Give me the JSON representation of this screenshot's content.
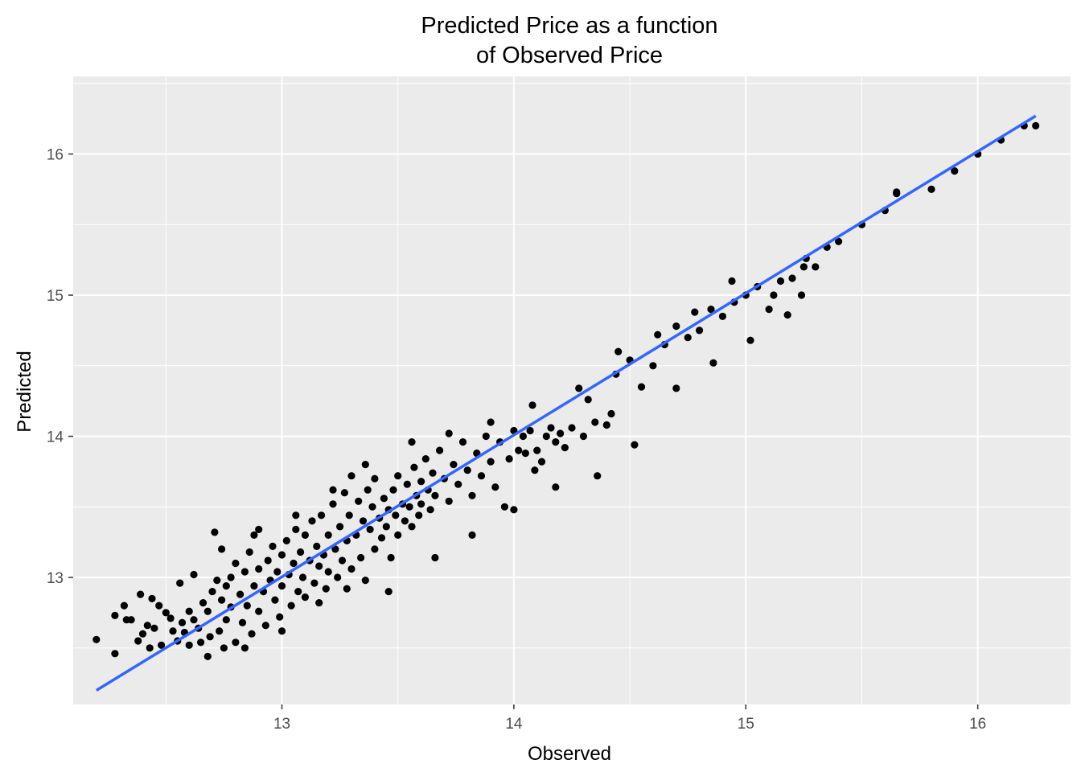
{
  "chart_data": {
    "type": "scatter",
    "title_lines": [
      "Predicted Price as a function",
      "of Observed Price"
    ],
    "xlabel": "Observed",
    "ylabel": "Predicted",
    "xlim": [
      12.1,
      16.4
    ],
    "ylim": [
      12.1,
      16.55
    ],
    "x_ticks": [
      13,
      14,
      15,
      16
    ],
    "y_ticks": [
      13,
      14,
      15,
      16
    ],
    "x_tick_labels": [
      "13",
      "14",
      "15",
      "16"
    ],
    "y_tick_labels": [
      "13",
      "14",
      "15",
      "16"
    ],
    "grid": true,
    "legend": "none",
    "fit_line": {
      "color": "#3366FF",
      "x": [
        12.2,
        16.25
      ],
      "y": [
        12.2,
        16.27
      ]
    },
    "point_color": "#000000",
    "panel_color": "#EBEBEB",
    "points": [
      [
        12.2,
        12.56
      ],
      [
        12.28,
        12.46
      ],
      [
        12.28,
        12.73
      ],
      [
        12.33,
        12.7
      ],
      [
        12.35,
        12.7
      ],
      [
        12.38,
        12.55
      ],
      [
        12.39,
        12.88
      ],
      [
        12.4,
        12.6
      ],
      [
        12.42,
        12.66
      ],
      [
        12.43,
        12.5
      ],
      [
        12.44,
        12.85
      ],
      [
        12.45,
        12.64
      ],
      [
        12.47,
        12.8
      ],
      [
        12.48,
        12.52
      ],
      [
        12.5,
        12.75
      ],
      [
        12.52,
        12.71
      ],
      [
        12.53,
        12.62
      ],
      [
        12.55,
        12.55
      ],
      [
        12.57,
        12.68
      ],
      [
        12.58,
        12.61
      ],
      [
        12.6,
        12.52
      ],
      [
        12.6,
        12.76
      ],
      [
        12.62,
        12.7
      ],
      [
        12.64,
        12.64
      ],
      [
        12.65,
        12.54
      ],
      [
        12.66,
        12.82
      ],
      [
        12.68,
        12.76
      ],
      [
        12.69,
        12.58
      ],
      [
        12.7,
        12.9
      ],
      [
        12.71,
        13.32
      ],
      [
        12.72,
        12.98
      ],
      [
        12.73,
        12.62
      ],
      [
        12.74,
        12.84
      ],
      [
        12.75,
        12.5
      ],
      [
        12.76,
        12.94
      ],
      [
        12.76,
        12.7
      ],
      [
        12.78,
        13.0
      ],
      [
        12.78,
        12.79
      ],
      [
        12.8,
        12.54
      ],
      [
        12.8,
        13.1
      ],
      [
        12.82,
        12.88
      ],
      [
        12.83,
        12.68
      ],
      [
        12.84,
        13.04
      ],
      [
        12.85,
        12.8
      ],
      [
        12.86,
        13.18
      ],
      [
        12.87,
        12.6
      ],
      [
        12.88,
        12.94
      ],
      [
        12.88,
        13.3
      ],
      [
        12.9,
        12.76
      ],
      [
        12.9,
        13.06
      ],
      [
        12.92,
        12.9
      ],
      [
        12.93,
        12.66
      ],
      [
        12.94,
        13.12
      ],
      [
        12.95,
        12.98
      ],
      [
        12.96,
        13.22
      ],
      [
        12.97,
        12.84
      ],
      [
        12.98,
        13.04
      ],
      [
        12.99,
        12.72
      ],
      [
        13.0,
        13.16
      ],
      [
        13.0,
        12.94
      ],
      [
        13.02,
        13.26
      ],
      [
        13.03,
        13.02
      ],
      [
        13.04,
        12.8
      ],
      [
        13.05,
        13.1
      ],
      [
        13.06,
        13.34
      ],
      [
        13.07,
        12.9
      ],
      [
        13.08,
        13.18
      ],
      [
        13.09,
        13.0
      ],
      [
        13.1,
        12.86
      ],
      [
        13.1,
        13.3
      ],
      [
        13.12,
        13.12
      ],
      [
        13.13,
        13.4
      ],
      [
        13.14,
        12.96
      ],
      [
        13.15,
        13.22
      ],
      [
        13.16,
        13.08
      ],
      [
        13.17,
        13.44
      ],
      [
        13.18,
        13.16
      ],
      [
        13.19,
        12.92
      ],
      [
        13.2,
        13.3
      ],
      [
        13.2,
        13.04
      ],
      [
        13.22,
        13.52
      ],
      [
        13.23,
        13.2
      ],
      [
        13.24,
        13.0
      ],
      [
        13.25,
        13.36
      ],
      [
        13.26,
        13.12
      ],
      [
        13.27,
        13.6
      ],
      [
        13.28,
        13.26
      ],
      [
        13.29,
        13.44
      ],
      [
        13.3,
        13.06
      ],
      [
        13.3,
        13.72
      ],
      [
        13.32,
        13.3
      ],
      [
        13.33,
        13.54
      ],
      [
        13.34,
        13.14
      ],
      [
        13.35,
        13.4
      ],
      [
        13.36,
        12.98
      ],
      [
        13.37,
        13.62
      ],
      [
        13.38,
        13.34
      ],
      [
        13.39,
        13.5
      ],
      [
        13.4,
        13.2
      ],
      [
        13.4,
        13.7
      ],
      [
        13.42,
        13.42
      ],
      [
        13.43,
        13.28
      ],
      [
        13.44,
        13.56
      ],
      [
        13.45,
        13.36
      ],
      [
        13.46,
        13.48
      ],
      [
        13.47,
        13.14
      ],
      [
        13.48,
        13.62
      ],
      [
        13.49,
        13.44
      ],
      [
        13.5,
        13.3
      ],
      [
        13.5,
        13.72
      ],
      [
        13.52,
        13.52
      ],
      [
        13.53,
        13.4
      ],
      [
        13.54,
        13.66
      ],
      [
        13.55,
        13.5
      ],
      [
        13.56,
        13.36
      ],
      [
        13.57,
        13.78
      ],
      [
        13.58,
        13.58
      ],
      [
        13.59,
        13.44
      ],
      [
        13.6,
        13.68
      ],
      [
        13.6,
        13.52
      ],
      [
        13.62,
        13.84
      ],
      [
        13.63,
        13.62
      ],
      [
        13.64,
        13.48
      ],
      [
        13.65,
        13.74
      ],
      [
        13.66,
        13.58
      ],
      [
        13.68,
        13.9
      ],
      [
        13.7,
        13.7
      ],
      [
        13.72,
        13.54
      ],
      [
        13.74,
        13.8
      ],
      [
        13.76,
        13.66
      ],
      [
        13.78,
        13.96
      ],
      [
        13.8,
        13.76
      ],
      [
        13.82,
        13.58
      ],
      [
        13.84,
        13.88
      ],
      [
        13.86,
        13.72
      ],
      [
        13.88,
        14.0
      ],
      [
        13.9,
        13.82
      ],
      [
        13.92,
        13.64
      ],
      [
        13.94,
        13.96
      ],
      [
        13.96,
        13.5
      ],
      [
        13.98,
        13.84
      ],
      [
        14.0,
        14.04
      ],
      [
        14.02,
        13.9
      ],
      [
        14.04,
        14.0
      ],
      [
        14.05,
        13.88
      ],
      [
        14.07,
        14.04
      ],
      [
        14.09,
        13.76
      ],
      [
        14.1,
        13.9
      ],
      [
        14.12,
        13.82
      ],
      [
        14.14,
        14.0
      ],
      [
        14.16,
        14.06
      ],
      [
        14.18,
        13.96
      ],
      [
        14.2,
        14.02
      ],
      [
        14.22,
        13.92
      ],
      [
        14.25,
        14.06
      ],
      [
        14.3,
        14.0
      ],
      [
        14.32,
        14.26
      ],
      [
        14.35,
        14.1
      ],
      [
        14.4,
        14.08
      ],
      [
        14.42,
        14.16
      ],
      [
        14.45,
        14.6
      ],
      [
        14.5,
        14.54
      ],
      [
        14.55,
        14.35
      ],
      [
        14.6,
        14.5
      ],
      [
        14.65,
        14.65
      ],
      [
        14.7,
        14.78
      ],
      [
        14.75,
        14.7
      ],
      [
        14.8,
        14.75
      ],
      [
        14.85,
        14.9
      ],
      [
        14.9,
        14.85
      ],
      [
        14.95,
        14.95
      ],
      [
        15.0,
        15.0
      ],
      [
        15.05,
        15.06
      ],
      [
        15.1,
        14.9
      ],
      [
        15.15,
        15.1
      ],
      [
        15.2,
        15.12
      ],
      [
        15.25,
        15.2
      ],
      [
        15.3,
        15.2
      ],
      [
        15.35,
        15.34
      ],
      [
        15.4,
        15.38
      ],
      [
        15.5,
        15.5
      ],
      [
        15.6,
        15.6
      ],
      [
        15.65,
        15.72
      ],
      [
        15.8,
        15.75
      ],
      [
        15.9,
        15.88
      ],
      [
        16.0,
        16.0
      ],
      [
        16.1,
        16.1
      ],
      [
        16.2,
        16.2
      ],
      [
        12.32,
        12.8
      ],
      [
        12.56,
        12.96
      ],
      [
        12.62,
        13.02
      ],
      [
        12.68,
        12.44
      ],
      [
        12.74,
        13.2
      ],
      [
        12.84,
        12.5
      ],
      [
        12.9,
        13.34
      ],
      [
        13.0,
        12.62
      ],
      [
        13.06,
        13.44
      ],
      [
        13.16,
        12.82
      ],
      [
        13.22,
        13.62
      ],
      [
        13.28,
        12.92
      ],
      [
        13.36,
        13.8
      ],
      [
        13.46,
        12.9
      ],
      [
        13.56,
        13.96
      ],
      [
        13.66,
        13.14
      ],
      [
        13.72,
        14.02
      ],
      [
        13.82,
        13.3
      ],
      [
        13.9,
        14.1
      ],
      [
        14.0,
        13.48
      ],
      [
        14.08,
        14.22
      ],
      [
        14.18,
        13.64
      ],
      [
        14.28,
        14.34
      ],
      [
        14.36,
        13.72
      ],
      [
        14.44,
        14.44
      ],
      [
        14.52,
        13.94
      ],
      [
        14.62,
        14.72
      ],
      [
        14.7,
        14.34
      ],
      [
        14.78,
        14.88
      ],
      [
        14.86,
        14.52
      ],
      [
        14.94,
        15.1
      ],
      [
        15.02,
        14.68
      ],
      [
        15.12,
        15.0
      ],
      [
        15.18,
        14.86
      ],
      [
        15.24,
        15.0
      ],
      [
        15.26,
        15.26
      ],
      [
        15.65,
        15.73
      ],
      [
        16.25,
        16.2
      ]
    ]
  }
}
